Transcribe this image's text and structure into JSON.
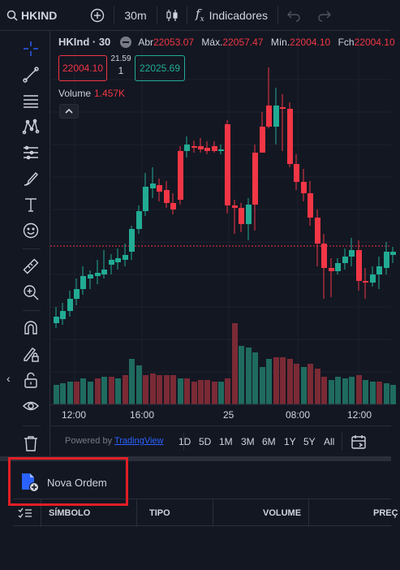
{
  "topbar": {
    "symbol": "HKIND",
    "interval": "30m",
    "indicators_label": "Indicadores"
  },
  "legend": {
    "symbol": "HKInd · 30",
    "open_label": "Abr",
    "open_value": "22053.07",
    "high_label": "Máx.",
    "high_value": "22057.47",
    "low_label": "Mín.",
    "low_value": "22004.10",
    "close_label": "Fch",
    "close_value": "22004.10",
    "sell_price": "22004.10",
    "spread": "21.59",
    "quantity": "1",
    "buy_price": "22025.69",
    "volume_label": "Volume",
    "volume_value": "1.457K"
  },
  "chart_data": {
    "type": "candlestick",
    "x_labels": [
      "12:00",
      "16:00",
      "25",
      "08:00",
      "12:00"
    ],
    "colors": {
      "up": "#22ab94",
      "down": "#f23645",
      "volume_up": "#1f6b5f",
      "volume_down": "#7a2a35"
    },
    "candles_note": "approximate OHLC read from pixels",
    "price_line": 22004.1
  },
  "rangebar": {
    "powered_prefix": "Powered by",
    "powered_link": "TradingView",
    "ranges": [
      "1D",
      "5D",
      "1M",
      "3M",
      "6M",
      "1Y",
      "5Y",
      "All"
    ]
  },
  "panel": {
    "new_order_label": "Nova Ordem",
    "columns": [
      "SÍMBOLO",
      "TIPO",
      "VOLUME",
      "PREÇ"
    ]
  }
}
